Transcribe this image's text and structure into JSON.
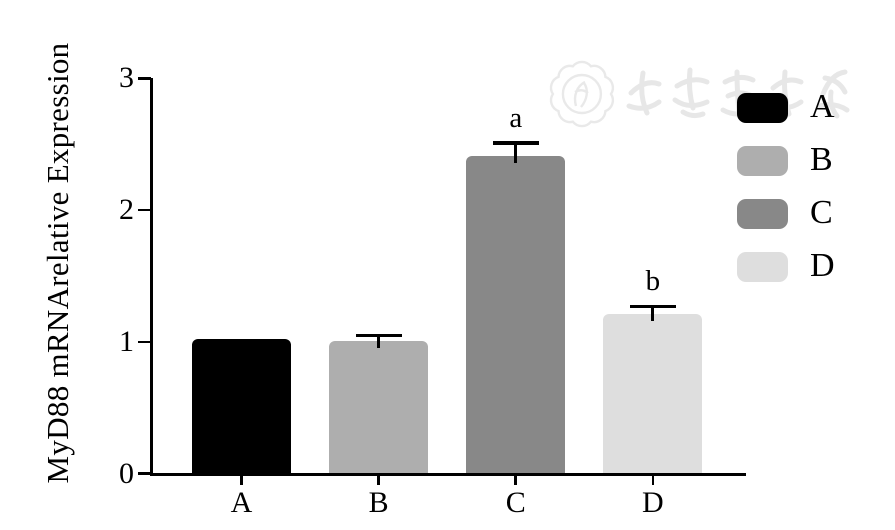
{
  "chart_data": {
    "type": "bar",
    "title": "",
    "xlabel": "",
    "ylabel": "MyD88 mRNArelative Expression",
    "ylim": [
      0,
      3
    ],
    "yticks": [
      "0",
      "1",
      "2",
      "3"
    ],
    "categories": [
      "A",
      "B",
      "C",
      "D"
    ],
    "values": [
      1.02,
      1.01,
      2.41,
      1.21
    ],
    "errors_upper": [
      0,
      0.04,
      0.1,
      0.06
    ],
    "significance_labels": [
      "",
      "",
      "a",
      "b"
    ],
    "bar_colors": [
      "#000000",
      "#aeaeae",
      "#888888",
      "#dedede"
    ],
    "axis_color": "#000000",
    "grid": false,
    "legend_position": "right",
    "legend": [
      {
        "label": "A",
        "color": "#000000"
      },
      {
        "label": "B",
        "color": "#aeaeae"
      },
      {
        "label": "C",
        "color": "#888888"
      },
      {
        "label": "D",
        "color": "#dedede"
      }
    ]
  },
  "watermark": {
    "text": "中华医学会",
    "description": "Chinese Medical Association seal and calligraphy watermark",
    "color": "#e9e9e9"
  }
}
